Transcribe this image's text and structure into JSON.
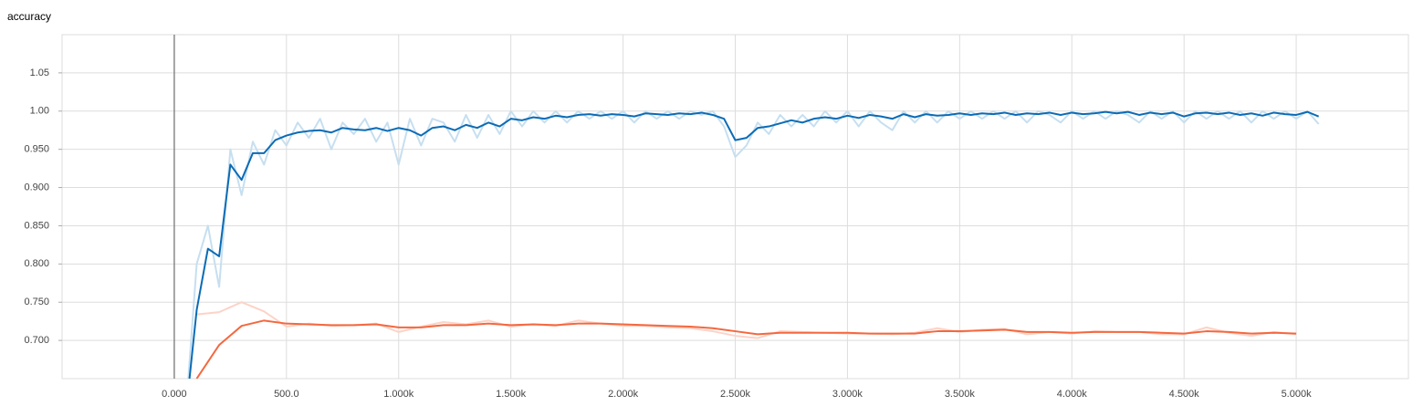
{
  "chart_data": {
    "type": "line",
    "title": "accuracy",
    "xlim": [
      -500,
      5500
    ],
    "ylim": [
      0.65,
      1.1
    ],
    "xticks": [
      {
        "value": 0,
        "label": "0.000"
      },
      {
        "value": 500,
        "label": "500.0"
      },
      {
        "value": 1000,
        "label": "1.000k"
      },
      {
        "value": 1500,
        "label": "1.500k"
      },
      {
        "value": 2000,
        "label": "2.000k"
      },
      {
        "value": 2500,
        "label": "2.500k"
      },
      {
        "value": 3000,
        "label": "3.000k"
      },
      {
        "value": 3500,
        "label": "3.500k"
      },
      {
        "value": 4000,
        "label": "4.000k"
      },
      {
        "value": 4500,
        "label": "4.500k"
      },
      {
        "value": 5000,
        "label": "5.000k"
      }
    ],
    "yticks": [
      {
        "value": 0.7,
        "label": "0.700"
      },
      {
        "value": 0.75,
        "label": "0.750"
      },
      {
        "value": 0.8,
        "label": "0.800"
      },
      {
        "value": 0.85,
        "label": "0.850"
      },
      {
        "value": 0.9,
        "label": "0.900"
      },
      {
        "value": 0.95,
        "label": "0.950"
      },
      {
        "value": 1,
        "label": "1.00"
      },
      1.05
    ],
    "grid": true,
    "series": [
      {
        "color": "#c6dff0",
        "width": 2,
        "x": [
          50,
          100,
          150,
          200,
          250,
          300,
          350,
          400,
          450,
          500,
          550,
          600,
          650,
          700,
          750,
          800,
          850,
          900,
          950,
          1000,
          1050,
          1100,
          1150,
          1200,
          1250,
          1300,
          1350,
          1400,
          1450,
          1500,
          1550,
          1600,
          1650,
          1700,
          1750,
          1800,
          1850,
          1900,
          1950,
          2000,
          2050,
          2100,
          2150,
          2200,
          2250,
          2300,
          2350,
          2400,
          2450,
          2500,
          2550,
          2600,
          2650,
          2700,
          2750,
          2800,
          2850,
          2900,
          2950,
          3000,
          3050,
          3100,
          3150,
          3200,
          3250,
          3300,
          3350,
          3400,
          3450,
          3500,
          3550,
          3600,
          3650,
          3700,
          3750,
          3800,
          3850,
          3900,
          3950,
          4000,
          4050,
          4100,
          4150,
          4200,
          4250,
          4300,
          4350,
          4400,
          4450,
          4500,
          4550,
          4600,
          4650,
          4700,
          4750,
          4800,
          4850,
          4900,
          4950,
          5000,
          5050,
          5100
        ],
        "values": [
          0.6,
          0.8,
          0.85,
          0.77,
          0.95,
          0.89,
          0.96,
          0.93,
          0.975,
          0.955,
          0.985,
          0.965,
          0.99,
          0.95,
          0.985,
          0.97,
          0.99,
          0.96,
          0.985,
          0.93,
          0.99,
          0.955,
          0.99,
          0.985,
          0.96,
          0.995,
          0.965,
          0.995,
          0.97,
          1.0,
          0.98,
          1.0,
          0.985,
          1.0,
          0.985,
          1.0,
          0.99,
          1.0,
          0.99,
          1.0,
          0.985,
          1.0,
          0.99,
          1.0,
          0.99,
          1.0,
          0.995,
          1.0,
          0.98,
          0.94,
          0.955,
          0.985,
          0.97,
          0.995,
          0.98,
          0.995,
          0.98,
          1.0,
          0.985,
          1.0,
          0.98,
          1.0,
          0.985,
          0.975,
          1.0,
          0.985,
          1.0,
          0.985,
          1.0,
          0.99,
          1.0,
          0.99,
          1.0,
          0.99,
          1.0,
          0.985,
          1.0,
          0.995,
          0.985,
          1.0,
          0.99,
          1.0,
          0.99,
          1.0,
          0.995,
          0.985,
          1.0,
          0.99,
          1.0,
          0.985,
          1.0,
          0.99,
          1.0,
          0.99,
          1.0,
          0.985,
          1.0,
          0.99,
          1.0,
          0.99,
          1.0,
          0.983
        ]
      },
      {
        "color": "#fdd3c7",
        "width": 2,
        "x": [
          100,
          200,
          300,
          400,
          500,
          600,
          700,
          800,
          900,
          1000,
          1100,
          1200,
          1300,
          1400,
          1500,
          1600,
          1700,
          1800,
          1900,
          2000,
          2100,
          2200,
          2300,
          2400,
          2500,
          2600,
          2700,
          2800,
          2900,
          3000,
          3100,
          3200,
          3300,
          3400,
          3500,
          3600,
          3700,
          3800,
          3900,
          4000,
          4100,
          4200,
          4300,
          4400,
          4500,
          4600,
          4700,
          4800,
          4900,
          5000
        ],
        "values": [
          0.734,
          0.737,
          0.75,
          0.738,
          0.718,
          0.722,
          0.719,
          0.72,
          0.722,
          0.711,
          0.718,
          0.724,
          0.721,
          0.726,
          0.718,
          0.721,
          0.719,
          0.726,
          0.722,
          0.719,
          0.719,
          0.717,
          0.716,
          0.712,
          0.706,
          0.703,
          0.712,
          0.711,
          0.71,
          0.709,
          0.709,
          0.708,
          0.71,
          0.716,
          0.711,
          0.714,
          0.715,
          0.708,
          0.711,
          0.709,
          0.712,
          0.711,
          0.711,
          0.708,
          0.708,
          0.717,
          0.71,
          0.706,
          0.711,
          0.708
        ]
      },
      {
        "color": "#0b6bb5",
        "width": 2,
        "x": [
          50,
          100,
          150,
          200,
          250,
          300,
          350,
          400,
          450,
          500,
          550,
          600,
          650,
          700,
          750,
          800,
          850,
          900,
          950,
          1000,
          1050,
          1100,
          1150,
          1200,
          1250,
          1300,
          1350,
          1400,
          1450,
          1500,
          1550,
          1600,
          1650,
          1700,
          1750,
          1800,
          1850,
          1900,
          1950,
          2000,
          2050,
          2100,
          2150,
          2200,
          2250,
          2300,
          2350,
          2400,
          2450,
          2500,
          2550,
          2600,
          2650,
          2700,
          2750,
          2800,
          2850,
          2900,
          2950,
          3000,
          3050,
          3100,
          3150,
          3200,
          3250,
          3300,
          3350,
          3400,
          3450,
          3500,
          3550,
          3600,
          3650,
          3700,
          3750,
          3800,
          3850,
          3900,
          3950,
          4000,
          4050,
          4100,
          4150,
          4200,
          4250,
          4300,
          4350,
          4400,
          4450,
          4500,
          4550,
          4600,
          4650,
          4700,
          4750,
          4800,
          4850,
          4900,
          4950,
          5000,
          5050,
          5100
        ],
        "values": [
          0.6,
          0.74,
          0.82,
          0.81,
          0.93,
          0.91,
          0.945,
          0.945,
          0.962,
          0.968,
          0.972,
          0.974,
          0.975,
          0.972,
          0.978,
          0.976,
          0.975,
          0.978,
          0.974,
          0.978,
          0.975,
          0.968,
          0.978,
          0.98,
          0.975,
          0.982,
          0.978,
          0.985,
          0.98,
          0.99,
          0.988,
          0.992,
          0.99,
          0.994,
          0.992,
          0.995,
          0.996,
          0.994,
          0.996,
          0.995,
          0.993,
          0.997,
          0.996,
          0.995,
          0.997,
          0.996,
          0.998,
          0.995,
          0.99,
          0.962,
          0.965,
          0.978,
          0.98,
          0.984,
          0.988,
          0.985,
          0.99,
          0.992,
          0.99,
          0.994,
          0.991,
          0.995,
          0.993,
          0.99,
          0.996,
          0.992,
          0.996,
          0.994,
          0.995,
          0.997,
          0.995,
          0.997,
          0.996,
          0.998,
          0.995,
          0.997,
          0.996,
          0.998,
          0.995,
          0.998,
          0.996,
          0.997,
          0.999,
          0.997,
          0.999,
          0.995,
          0.998,
          0.996,
          0.998,
          0.993,
          0.997,
          0.998,
          0.996,
          0.998,
          0.995,
          0.997,
          0.994,
          0.998,
          0.996,
          0.995,
          0.999,
          0.993
        ]
      },
      {
        "color": "#f4683f",
        "width": 2,
        "x": [
          100,
          200,
          300,
          400,
          500,
          600,
          700,
          800,
          900,
          1000,
          1100,
          1200,
          1300,
          1400,
          1500,
          1600,
          1700,
          1800,
          1900,
          2000,
          2100,
          2200,
          2300,
          2400,
          2500,
          2600,
          2700,
          2800,
          2900,
          3000,
          3100,
          3200,
          3300,
          3400,
          3500,
          3600,
          3700,
          3800,
          3900,
          4000,
          4100,
          4200,
          4300,
          4400,
          4500,
          4600,
          4700,
          4800,
          4900,
          5000
        ],
        "values": [
          0.65,
          0.694,
          0.719,
          0.726,
          0.722,
          0.721,
          0.72,
          0.72,
          0.721,
          0.717,
          0.717,
          0.72,
          0.72,
          0.722,
          0.72,
          0.721,
          0.72,
          0.722,
          0.722,
          0.721,
          0.72,
          0.719,
          0.718,
          0.716,
          0.712,
          0.708,
          0.71,
          0.71,
          0.71,
          0.71,
          0.709,
          0.709,
          0.709,
          0.712,
          0.712,
          0.713,
          0.714,
          0.711,
          0.711,
          0.71,
          0.711,
          0.711,
          0.711,
          0.71,
          0.709,
          0.712,
          0.711,
          0.709,
          0.71,
          0.709
        ]
      }
    ]
  }
}
